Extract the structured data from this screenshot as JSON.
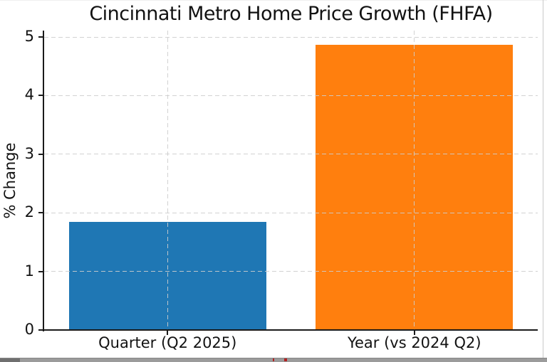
{
  "chart_data": {
    "type": "bar",
    "title": "Cincinnati Metro Home Price Growth (FHFA)",
    "xlabel": "",
    "ylabel": "% Change",
    "categories": [
      "Quarter (Q2 2025)",
      "Year (vs 2024 Q2)"
    ],
    "values": [
      1.84,
      4.87
    ],
    "bar_colors": [
      "#1f77b4",
      "#ff7f0e"
    ],
    "ylim": [
      0,
      5.11
    ],
    "yticks": [
      0,
      1,
      2,
      3,
      4,
      5
    ],
    "bar_width_fraction": 0.8,
    "grid": "dashed horizontal and vertical gridlines, drawn over bars",
    "legend": "none",
    "spine_color": "#1a1a1a"
  },
  "frame": {
    "background_color": "#ffffff",
    "right_border_color": "#c9c9c9",
    "top_hairline_color": "#efefef"
  },
  "bottom_window_fragment": {
    "strip_color": "#9b9b9b",
    "strip_top_line_color": "#878787",
    "left_block_color": "#6f6f6f",
    "red_mark_color": "#b22222"
  }
}
